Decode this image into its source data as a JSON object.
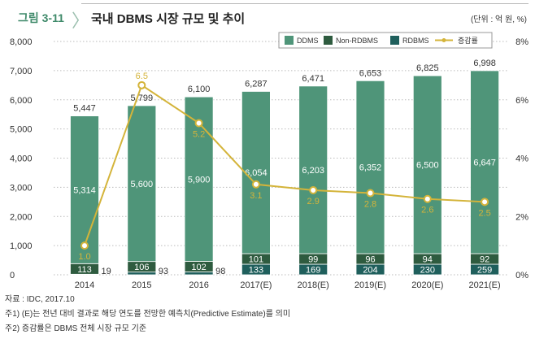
{
  "header": {
    "figure_label": "그림 3-11",
    "title": "국내 DBMS 시장 규모 및 추이",
    "unit": "(단위 : 억 원, %)"
  },
  "notes": [
    "자료 : IDC, 2017.10",
    "주1) (E)는 전년 대비 결과로 해당 연도를 전망한 예측치(Predictive Estimate)를 의미",
    "주2) 증감률은 DBMS 전체 시장 규모 기준"
  ],
  "chart_data": {
    "type": "bar",
    "stacked": true,
    "categories": [
      "2014",
      "2015",
      "2016",
      "2017(E)",
      "2018(E)",
      "2019(E)",
      "2020(E)",
      "2021(E)"
    ],
    "series": [
      {
        "name": "RDBMS",
        "values": [
          19,
          93,
          98,
          133,
          169,
          204,
          230,
          259
        ],
        "color": "#1f5f5c"
      },
      {
        "name": "Non-RDBMS",
        "values": [
          113,
          106,
          102,
          101,
          99,
          96,
          94,
          92
        ],
        "color": "#2e5b3f"
      },
      {
        "name": "DDMS",
        "values": [
          5314,
          5600,
          5900,
          6054,
          6203,
          6352,
          6500,
          6647
        ],
        "color": "#4f9579"
      }
    ],
    "totals": [
      5447,
      5799,
      6100,
      6287,
      6471,
      6653,
      6825,
      6998
    ],
    "line": {
      "name": "증감률",
      "values": [
        1.0,
        6.5,
        5.2,
        3.1,
        2.9,
        2.8,
        2.6,
        2.5
      ],
      "color": "#d4b43a",
      "axis": "right"
    },
    "ylim": [
      0,
      8000
    ],
    "yticks": [
      "0",
      "1,000",
      "2,000",
      "3,000",
      "4,000",
      "5,000",
      "6,000",
      "7,000",
      "8,000"
    ],
    "y2lim": [
      0,
      8
    ],
    "y2ticks": [
      "0%",
      "2%",
      "4%",
      "6%",
      "8%"
    ],
    "legend_order": [
      "DDMS",
      "Non-RDBMS",
      "RDBMS",
      "증감률"
    ],
    "legend": "top-right",
    "grid": true
  }
}
